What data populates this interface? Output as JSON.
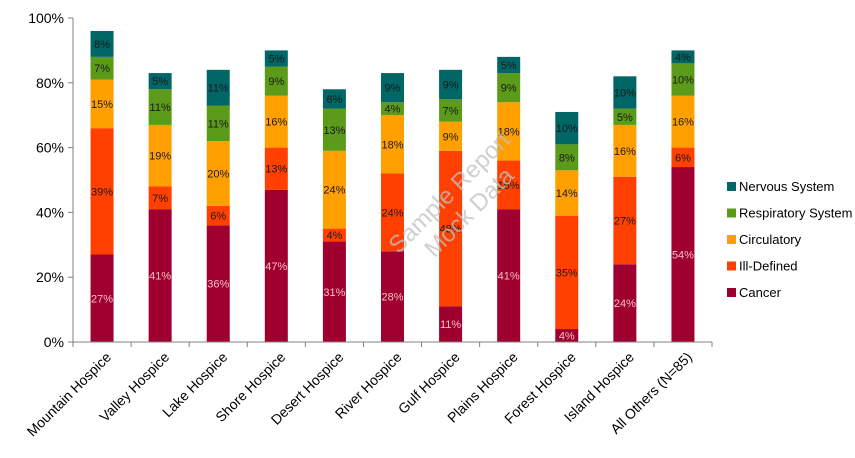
{
  "chart_data": {
    "type": "bar",
    "stacked": true,
    "normalized_percent": true,
    "categories": [
      "Mountain Hospice",
      "Valley Hospice",
      "Lake Hospice",
      "Shore Hospice",
      "Desert Hospice",
      "River Hospice",
      "Gulf Hospice",
      "Plains Hospice",
      "Forest Hospice",
      "Island Hospice",
      "All Others (N=85)"
    ],
    "series": [
      {
        "name": "Cancer",
        "color": "#a00030",
        "values": [
          27,
          41,
          36,
          47,
          31,
          28,
          11,
          41,
          4,
          24,
          54
        ]
      },
      {
        "name": "Ill-Defined",
        "color": "#ff4000",
        "values": [
          39,
          7,
          6,
          13,
          4,
          24,
          48,
          15,
          35,
          27,
          6
        ]
      },
      {
        "name": "Circulatory",
        "color": "#ffa000",
        "values": [
          15,
          19,
          20,
          16,
          24,
          18,
          9,
          18,
          14,
          16,
          16
        ]
      },
      {
        "name": "Respiratory System",
        "color": "#5c9a1a",
        "values": [
          7,
          11,
          11,
          9,
          13,
          4,
          7,
          9,
          8,
          5,
          10
        ]
      },
      {
        "name": "Nervous System",
        "color": "#006666",
        "values": [
          8,
          5,
          11,
          5,
          6,
          9,
          9,
          5,
          10,
          10,
          4
        ]
      }
    ],
    "yticks": [
      "0%",
      "20%",
      "40%",
      "60%",
      "80%",
      "100%"
    ],
    "ylim": [
      0,
      100
    ],
    "legend_position": "right",
    "grid": false,
    "watermark_lines": [
      "Sample Report",
      "Mock Data"
    ]
  }
}
